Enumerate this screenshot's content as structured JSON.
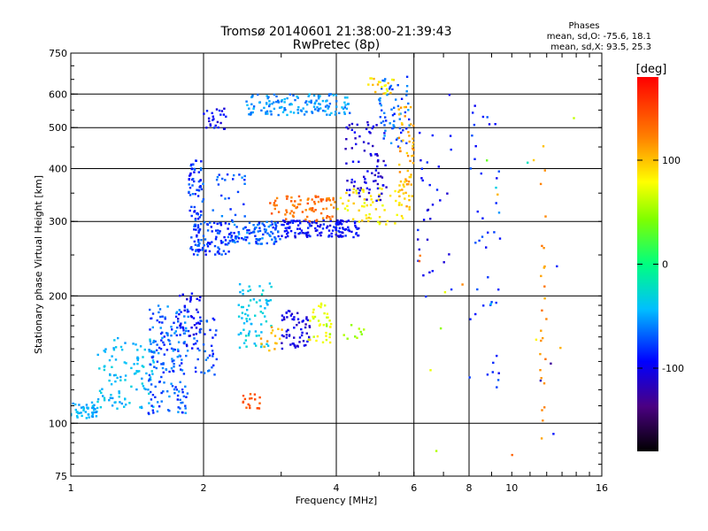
{
  "chart_data": {
    "type": "scatter",
    "title": "Tromsø 20140601 21:38:00-21:39:43",
    "subtitle": "RwPretec (8p)",
    "xlabel": "Frequency [MHz]",
    "ylabel": "Stationary phase Virtual Height [km]",
    "x_scale": "log",
    "y_scale": "log",
    "xlim": [
      1,
      16
    ],
    "ylim": [
      75,
      750
    ],
    "x_ticks": [
      1,
      2,
      4,
      6,
      8,
      10,
      16
    ],
    "y_ticks": [
      75,
      100,
      200,
      300,
      400,
      500,
      600,
      750
    ],
    "x_gridlines": [
      2,
      4,
      6,
      8
    ],
    "y_gridlines": [
      100,
      200,
      300,
      400,
      500,
      600
    ],
    "grid": true,
    "stats": {
      "heading": "Phases",
      "line_o": "mean, sd,O:  -75.6, 18.1",
      "line_x": "mean, sd,X:  93.5, 25.3"
    },
    "colorbar": {
      "label": "[deg]",
      "min": -180,
      "max": 180,
      "ticks": [
        100,
        0,
        -100
      ],
      "colormap": "rainbow"
    },
    "clusters": [
      {
        "f": [
          1.0,
          1.15
        ],
        "h": [
          102,
          112
        ],
        "phase": [
          -60,
          -35
        ],
        "n": 45
      },
      {
        "f": [
          1.15,
          1.55
        ],
        "h": [
          108,
          160
        ],
        "phase": [
          -55,
          -30
        ],
        "n": 110
      },
      {
        "f": [
          1.5,
          1.85
        ],
        "h": [
          105,
          190
        ],
        "phase": [
          -90,
          -50
        ],
        "n": 170
      },
      {
        "f": [
          1.75,
          1.98
        ],
        "h": [
          150,
          205
        ],
        "phase": [
          -110,
          -80
        ],
        "n": 45
      },
      {
        "f": [
          1.9,
          2.15
        ],
        "h": [
          130,
          180
        ],
        "phase": [
          -90,
          -60
        ],
        "n": 40
      },
      {
        "f": [
          1.85,
          2.0
        ],
        "h": [
          255,
          420
        ],
        "phase": [
          -100,
          -60
        ],
        "n": 80
      },
      {
        "f": [
          1.9,
          2.3
        ],
        "h": [
          250,
          300
        ],
        "phase": [
          -95,
          -60
        ],
        "n": 80
      },
      {
        "f": [
          2.3,
          3.0
        ],
        "h": [
          265,
          300
        ],
        "phase": [
          -90,
          -50
        ],
        "n": 100
      },
      {
        "f": [
          3.0,
          4.5
        ],
        "h": [
          275,
          302
        ],
        "phase": [
          -110,
          -80
        ],
        "n": 140
      },
      {
        "f": [
          2.8,
          4.0
        ],
        "h": [
          300,
          345
        ],
        "phase": [
          115,
          145
        ],
        "n": 80
      },
      {
        "f": [
          2.1,
          2.5
        ],
        "h": [
          300,
          390
        ],
        "phase": [
          -85,
          -55
        ],
        "n": 25
      },
      {
        "f": [
          4.0,
          5.7
        ],
        "h": [
          295,
          360
        ],
        "phase": [
          70,
          100
        ],
        "n": 60
      },
      {
        "f": [
          4.2,
          5.2
        ],
        "h": [
          330,
          520
        ],
        "phase": [
          -120,
          -90
        ],
        "n": 80
      },
      {
        "f": [
          5.0,
          5.9
        ],
        "h": [
          450,
          660
        ],
        "phase": [
          -90,
          -50
        ],
        "n": 60
      },
      {
        "f": [
          5.5,
          6.0
        ],
        "h": [
          320,
          560
        ],
        "phase": [
          90,
          120
        ],
        "n": 60
      },
      {
        "f": [
          4.7,
          5.4
        ],
        "h": [
          600,
          660
        ],
        "phase": [
          70,
          110
        ],
        "n": 20
      },
      {
        "f": [
          2.5,
          4.3
        ],
        "h": [
          535,
          600
        ],
        "phase": [
          -70,
          -40
        ],
        "n": 140
      },
      {
        "f": [
          2.0,
          2.25
        ],
        "h": [
          495,
          560
        ],
        "phase": [
          -110,
          -80
        ],
        "n": 25
      },
      {
        "f": [
          2.4,
          2.85
        ],
        "h": [
          150,
          215
        ],
        "phase": [
          -50,
          -25
        ],
        "n": 70
      },
      {
        "f": [
          2.7,
          3.1
        ],
        "h": [
          148,
          170
        ],
        "phase": [
          95,
          120
        ],
        "n": 15
      },
      {
        "f": [
          3.0,
          3.5
        ],
        "h": [
          150,
          185
        ],
        "phase": [
          -120,
          -90
        ],
        "n": 60
      },
      {
        "f": [
          3.45,
          3.9
        ],
        "h": [
          155,
          195
        ],
        "phase": [
          60,
          90
        ],
        "n": 35
      },
      {
        "f": [
          3.8,
          4.7
        ],
        "h": [
          158,
          172
        ],
        "phase": [
          45,
          60
        ],
        "n": 12
      },
      {
        "f": [
          2.45,
          2.7
        ],
        "h": [
          108,
          118
        ],
        "phase": [
          135,
          150
        ],
        "n": 18
      },
      {
        "f": [
          6.1,
          7.3
        ],
        "h": [
          180,
          500
        ],
        "phase": [
          -110,
          -80
        ],
        "n": 30
      },
      {
        "f": [
          8.0,
          9.5
        ],
        "h": [
          120,
          560
        ],
        "phase": [
          -100,
          -70
        ],
        "n": 40
      },
      {
        "f": [
          11.6,
          12.0
        ],
        "h": [
          85,
          600
        ],
        "phase": [
          100,
          130
        ],
        "n": 25
      },
      {
        "f": [
          6.0,
          14.0
        ],
        "h": [
          80,
          650
        ],
        "phase": [
          -130,
          140
        ],
        "n": 25
      }
    ]
  }
}
